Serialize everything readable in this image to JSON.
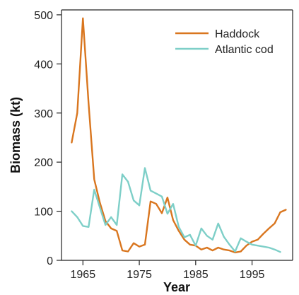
{
  "chart_data": {
    "type": "line",
    "xlabel": "Year",
    "ylabel": "Biomass (kt)",
    "xlim": [
      1961.2,
      2002.2
    ],
    "ylim": [
      0,
      510
    ],
    "xticks": [
      1965,
      1975,
      1985,
      1995
    ],
    "yticks": [
      0,
      100,
      200,
      300,
      400,
      500
    ],
    "grid": false,
    "legend_position": "top-right",
    "series": [
      {
        "name": "Haddock",
        "color": "#d9761f",
        "x": [
          1963,
          1964,
          1965,
          1966,
          1967,
          1968,
          1969,
          1970,
          1971,
          1972,
          1973,
          1974,
          1975,
          1976,
          1977,
          1978,
          1979,
          1980,
          1981,
          1982,
          1983,
          1984,
          1985,
          1986,
          1987,
          1988,
          1989,
          1990,
          1991,
          1992,
          1993,
          1994,
          1995,
          1996,
          1997,
          1998,
          1999,
          2000,
          2001
        ],
        "y": [
          240,
          300,
          493,
          320,
          165,
          118,
          80,
          65,
          60,
          20,
          18,
          35,
          28,
          32,
          120,
          115,
          96,
          128,
          82,
          60,
          42,
          32,
          30,
          22,
          26,
          20,
          26,
          22,
          20,
          16,
          18,
          30,
          38,
          42,
          54,
          65,
          75,
          98,
          103
        ]
      },
      {
        "name": "Atlantic cod",
        "color": "#7ecfc8",
        "x": [
          1963,
          1964,
          1965,
          1966,
          1967,
          1968,
          1969,
          1970,
          1971,
          1972,
          1973,
          1974,
          1975,
          1976,
          1977,
          1978,
          1979,
          1980,
          1981,
          1982,
          1983,
          1984,
          1985,
          1986,
          1987,
          1988,
          1989,
          1990,
          1991,
          1992,
          1993,
          1994,
          1995,
          1996,
          1997,
          1998,
          1999,
          2000
        ],
        "y": [
          100,
          88,
          70,
          68,
          144,
          108,
          72,
          88,
          72,
          175,
          160,
          122,
          112,
          188,
          142,
          136,
          130,
          95,
          115,
          68,
          47,
          52,
          30,
          65,
          50,
          42,
          75,
          48,
          32,
          18,
          45,
          38,
          32,
          30,
          28,
          26,
          22,
          17
        ]
      }
    ]
  }
}
